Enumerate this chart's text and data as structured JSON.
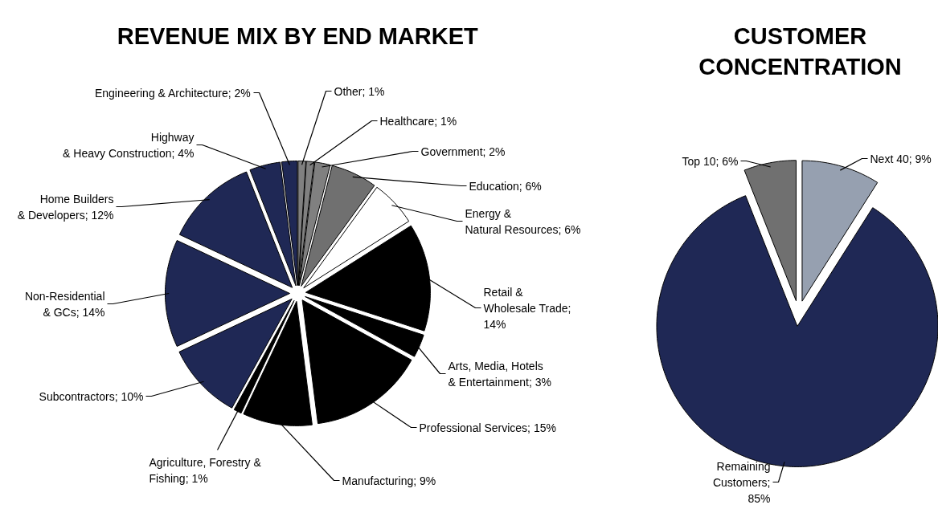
{
  "chart_data": [
    {
      "type": "pie",
      "title": "REVENUE MIX BY END MARKET",
      "categories": [
        "Other; 1%",
        "Healthcare; 1%",
        "Government; 2%",
        "Education; 6%",
        "Energy &\nNatural Resources; 6%",
        "Retail &\nWholesale Trade;\n14%",
        "Arts, Media, Hotels\n& Entertainment; 3%",
        "Professional Services; 15%",
        "Manufacturing; 9%",
        "Agriculture, Forestry &\nFishing; 1%",
        "Subcontractors; 10%",
        "Non-Residential\n& GCs; 14%",
        "Home Builders\n& Developers; 12%",
        "Highway\n& Heavy Construction; 4%",
        "Engineering & Architecture; 2%"
      ],
      "values": [
        1,
        1,
        2,
        6,
        6,
        14,
        3,
        15,
        9,
        1,
        10,
        14,
        12,
        4,
        2
      ],
      "colors": [
        "#808080",
        "#808080",
        "#808080",
        "#707070",
        "#ffffff",
        "#000000",
        "#000000",
        "#000000",
        "#000000",
        "#000000",
        "#1f2855",
        "#1f2855",
        "#1f2855",
        "#1f2855",
        "#1f2855"
      ]
    },
    {
      "type": "pie",
      "title": "CUSTOMER\nCONCENTRATION",
      "categories": [
        "Next 40; 9%",
        "Remaining\nCustomers;\n85%",
        "Top 10; 6%"
      ],
      "values": [
        9,
        85,
        6
      ],
      "colors": [
        "#96a0b0",
        "#1f2855",
        "#707070"
      ]
    }
  ]
}
